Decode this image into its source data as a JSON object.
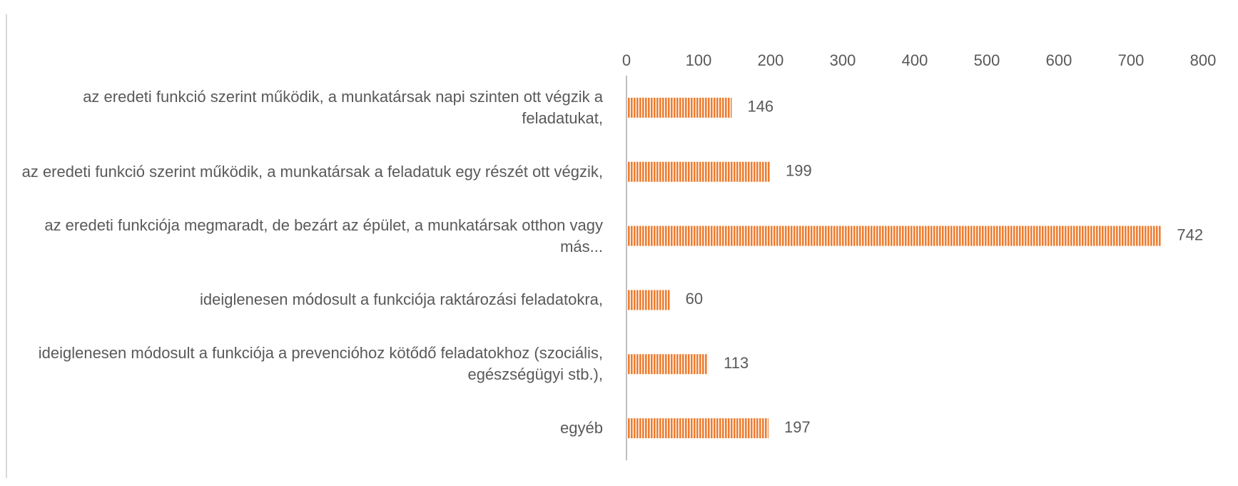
{
  "chart_data": {
    "type": "hbar",
    "categories": [
      "az eredeti funkció szerint működik, a munkatársak napi szinten ott végzik a feladatukat,",
      "az eredeti funkció szerint működik, a munkatársak a feladatuk egy részét ott végzik,",
      "az eredeti funkciója megmaradt, de bezárt az épület, a munkatársak otthon vagy más...",
      "ideiglenesen módosult a funkciója raktározási feladatokra,",
      "ideiglenesen módosult a funkciója a prevencióhoz kötődő feladatokhoz (szociális, egészségügyi stb.),",
      "egyéb"
    ],
    "values": [
      146,
      199,
      742,
      60,
      113,
      197
    ],
    "color": "#ed7d31",
    "xlim": [
      0,
      800
    ],
    "xticks": [
      0,
      100,
      200,
      300,
      400,
      500,
      600,
      700,
      800
    ]
  }
}
